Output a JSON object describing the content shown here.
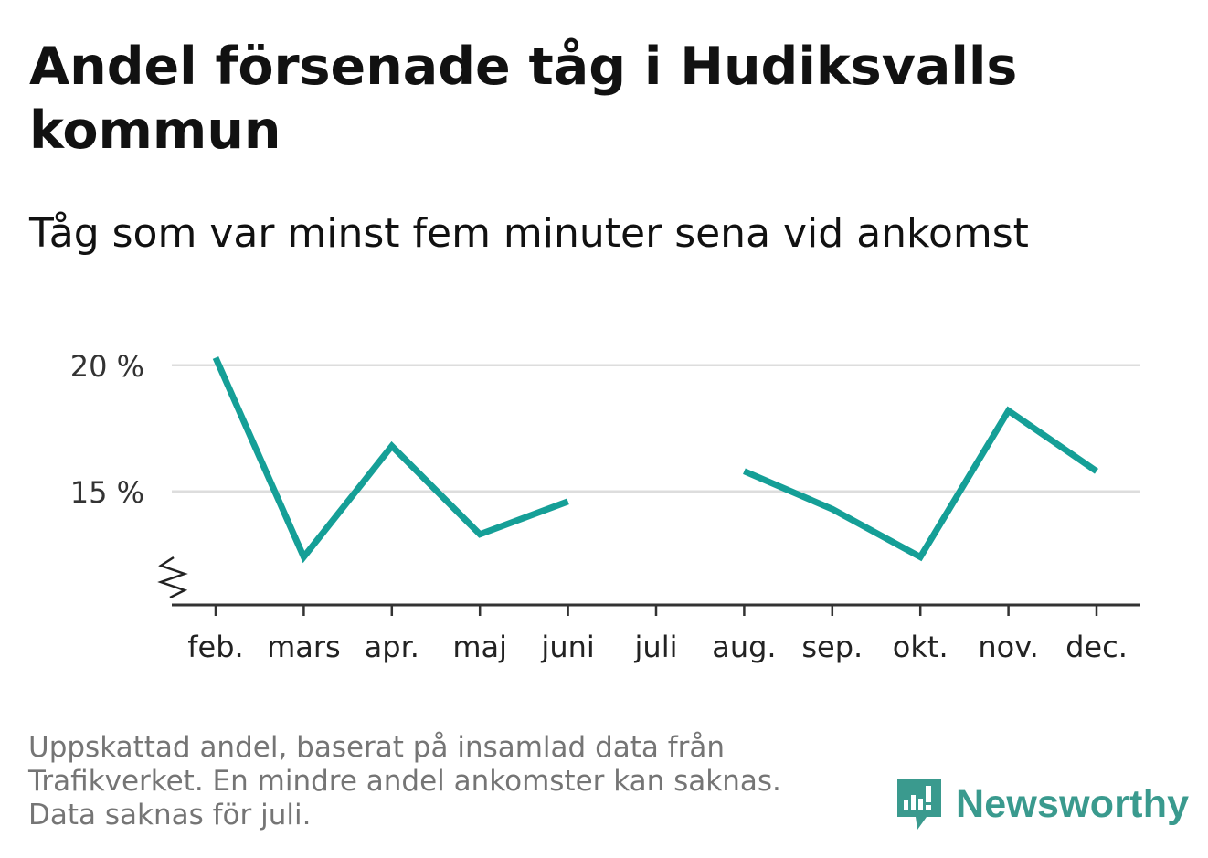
{
  "title": "Andel försenade tåg i Hudiksvalls kommun",
  "subtitle": "Tåg som var minst fem minuter sena vid ankomst",
  "footnote": {
    "line1": "Uppskattad andel, baserat på insamlad data från Trafikverket. En mindre andel ankomster kan saknas.",
    "line2": "Data saknas för juli."
  },
  "brand": {
    "name": "Newsworthy",
    "icon": "newsworthy-logo-icon",
    "color": "#3a9a8e"
  },
  "chart_data": {
    "type": "line",
    "title": "Andel försenade tåg i Hudiksvalls kommun",
    "subtitle": "Tåg som var minst fem minuter sena vid ankomst",
    "xlabel": "",
    "ylabel": "",
    "categories": [
      "feb.",
      "mars",
      "apr.",
      "maj",
      "juni",
      "juli",
      "aug.",
      "sep.",
      "okt.",
      "nov.",
      "dec."
    ],
    "series": [
      {
        "values": [
          20.3,
          12.4,
          16.8,
          13.3,
          14.6,
          null,
          15.8,
          14.3,
          12.4,
          18.2,
          15.8
        ],
        "color": "#159f97"
      }
    ],
    "yticks": [
      15,
      20
    ],
    "ytick_labels": [
      "15 %",
      "20 %"
    ],
    "ylim": [
      10.5,
      20.5
    ],
    "y_axis_break": true,
    "grid": true,
    "gridline_color": "#dddddd",
    "legend": "none"
  }
}
